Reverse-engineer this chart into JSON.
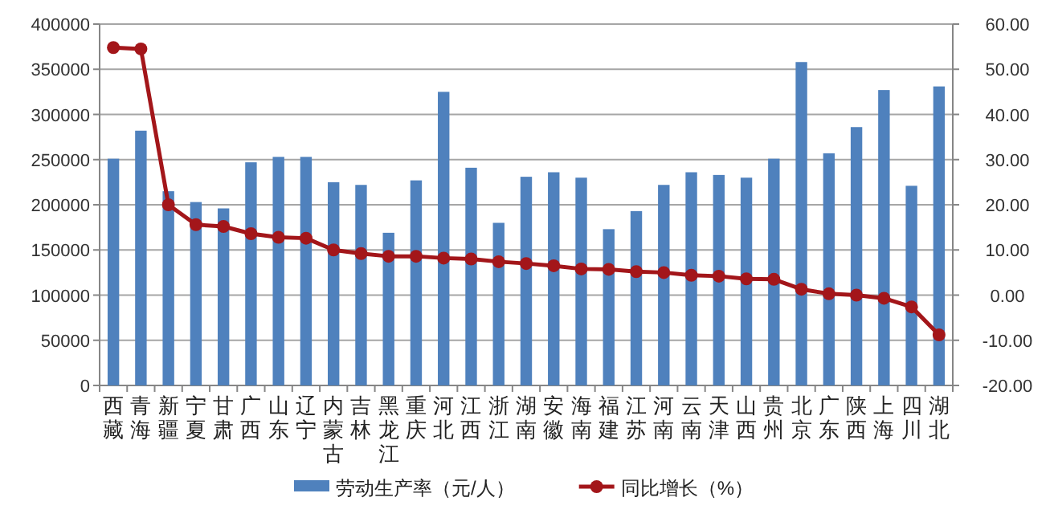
{
  "chart_data": {
    "type": "bar",
    "categories": [
      "西藏",
      "青海",
      "新疆",
      "宁夏",
      "甘肃",
      "广西",
      "山东",
      "辽宁",
      "内蒙古",
      "吉林",
      "黑龙江",
      "重庆",
      "河北",
      "江西",
      "浙江",
      "湖南",
      "安徽",
      "海南",
      "福建",
      "江苏",
      "河南",
      "云南",
      "天津",
      "山西",
      "贵州",
      "北京",
      "广东",
      "陕西",
      "上海",
      "四川",
      "湖北"
    ],
    "series": [
      {
        "name": "劳动生产率（元/人）",
        "color": "#4f81bd",
        "values": [
          251000,
          282000,
          215000,
          203000,
          196000,
          247000,
          253000,
          253000,
          225000,
          222000,
          169000,
          227000,
          325000,
          241000,
          180000,
          231000,
          236000,
          230000,
          173000,
          193000,
          222000,
          236000,
          233000,
          230000,
          251000,
          358000,
          257000,
          286000,
          327000,
          221000,
          331000
        ]
      },
      {
        "name": "同比增长（%）",
        "type": "line",
        "axis": "y2",
        "color": "#a3161a",
        "marker": "circle",
        "values": [
          54.8,
          54.5,
          20.0,
          15.6,
          15.2,
          13.6,
          12.8,
          12.6,
          10.0,
          9.2,
          8.6,
          8.6,
          8.2,
          8.0,
          7.4,
          7.0,
          6.5,
          5.8,
          5.7,
          5.2,
          5.0,
          4.4,
          4.2,
          3.6,
          3.5,
          1.3,
          0.3,
          0.0,
          -0.7,
          -2.6,
          -8.8
        ]
      }
    ],
    "ylim": [
      0,
      400000
    ],
    "yticks": [
      0,
      50000,
      100000,
      150000,
      200000,
      250000,
      300000,
      350000,
      400000
    ],
    "y2lim": [
      -20,
      60
    ],
    "y2ticks": [
      {
        "value": -20,
        "label": "-20.00"
      },
      {
        "value": -10,
        "label": "-10.00"
      },
      {
        "value": 0,
        "label": "0.00"
      },
      {
        "value": 10,
        "label": "10.00"
      },
      {
        "value": 20,
        "label": "20.00"
      },
      {
        "value": 30,
        "label": "30.00"
      },
      {
        "value": 40,
        "label": "40.00"
      },
      {
        "value": 50,
        "label": "50.00"
      },
      {
        "value": 60,
        "label": "60.00"
      }
    ],
    "grid": "y",
    "legend": "bottom"
  }
}
